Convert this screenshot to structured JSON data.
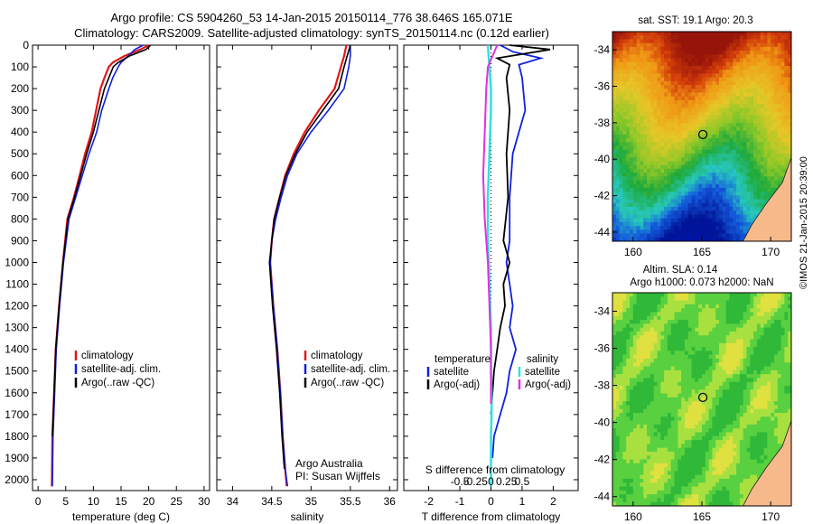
{
  "header": {
    "line1": "Argo profile: CS 5904260_53 14-Jan-2015 20150114_776 38.646S 165.071E",
    "line2": "Climatology: CARS2009. Satellite-adjusted climatology: synTS_20150114.nc (0.12d earlier)"
  },
  "watermark": "©IMOS 21-Jan-2015 20:39:00",
  "colors": {
    "climatology": "#e01818",
    "satellite": "#1020e0",
    "argo": "#000000",
    "salinity_sat": "#30e0e0",
    "salinity_argo": "#e030e0"
  },
  "chart_data": [
    {
      "id": "temperature",
      "type": "line",
      "xlabel": "temperature (deg C)",
      "ylabel": "",
      "xlim": [
        -1,
        31
      ],
      "ylim": [
        2050,
        0
      ],
      "xticks": [
        "0",
        "5",
        "10",
        "15",
        "20",
        "25",
        "30"
      ],
      "yticks": [
        "0",
        "100",
        "200",
        "300",
        "400",
        "500",
        "600",
        "700",
        "800",
        "900",
        "1000",
        "1100",
        "1200",
        "1300",
        "1400",
        "1500",
        "1600",
        "1700",
        "1800",
        "1900",
        "2000"
      ],
      "legend": [
        "climatology",
        "satellite-adj. clim.",
        "Argo(..raw -QC)"
      ],
      "series": [
        {
          "name": "climatology",
          "x": [
            20.0,
            18.5,
            15.6,
            13.5,
            12.8,
            12.0,
            11.3,
            10.5,
            9.7,
            8.5,
            7.5,
            6.5,
            5.3,
            4.5,
            3.8,
            3.2,
            2.9,
            2.6,
            2.5
          ],
          "y": [
            0,
            20,
            50,
            80,
            100,
            150,
            200,
            300,
            400,
            500,
            600,
            700,
            800,
            1000,
            1200,
            1400,
            1600,
            1800,
            2030
          ]
        },
        {
          "name": "satellite-adj. clim.",
          "x": [
            19.0,
            17.5,
            16.3,
            15.0,
            14.5,
            13.5,
            12.8,
            11.5,
            10.6,
            9.2,
            8.0,
            6.8,
            5.6,
            4.6,
            3.9,
            3.3,
            3.0,
            2.7,
            2.6
          ],
          "y": [
            0,
            20,
            50,
            80,
            100,
            150,
            200,
            300,
            400,
            500,
            600,
            700,
            800,
            1000,
            1200,
            1400,
            1600,
            1800,
            2030
          ]
        },
        {
          "name": "Argo(..raw -QC)",
          "x": [
            20.3,
            19.5,
            16.5,
            14.5,
            13.6,
            12.8,
            12.0,
            11.0,
            10.0,
            8.8,
            7.7,
            6.6,
            5.4,
            4.5,
            3.8,
            3.2,
            2.9,
            2.6
          ],
          "y": [
            0,
            20,
            50,
            80,
            100,
            150,
            200,
            300,
            400,
            500,
            600,
            700,
            800,
            1000,
            1200,
            1400,
            1600,
            1800
          ]
        }
      ]
    },
    {
      "id": "salinity",
      "type": "line",
      "xlabel": "salinity",
      "xlim": [
        33.8,
        36.1
      ],
      "ylim": [
        2050,
        0
      ],
      "xticks": [
        "34",
        "34.5",
        "35",
        "35.5",
        "36"
      ],
      "legend": [
        "climatology",
        "satellite-adj. clim.",
        "Argo(..raw -QC)"
      ],
      "annotation": [
        "Argo Australia",
        "PI: Susan Wijffels"
      ],
      "series": [
        {
          "name": "climatology",
          "x": [
            35.45,
            35.42,
            35.38,
            35.3,
            35.1,
            34.92,
            34.78,
            34.67,
            34.6,
            34.53,
            34.5,
            34.48,
            34.52,
            34.57,
            34.61,
            34.64,
            34.67,
            34.69
          ],
          "y": [
            0,
            50,
            100,
            200,
            300,
            400,
            500,
            600,
            700,
            800,
            900,
            1000,
            1200,
            1400,
            1600,
            1800,
            1950,
            2030
          ]
        },
        {
          "name": "satellite-adj. clim.",
          "x": [
            35.5,
            35.5,
            35.48,
            35.42,
            35.22,
            35.0,
            34.82,
            34.7,
            34.62,
            34.55,
            34.5,
            34.48,
            34.52,
            34.57,
            34.61,
            34.64,
            34.67,
            34.7
          ],
          "y": [
            0,
            50,
            100,
            200,
            300,
            400,
            500,
            600,
            700,
            800,
            900,
            1000,
            1200,
            1400,
            1600,
            1800,
            1950,
            2030
          ]
        },
        {
          "name": "Argo(..raw -QC)",
          "x": [
            35.5,
            35.46,
            35.42,
            35.35,
            35.15,
            34.95,
            34.8,
            34.68,
            34.6,
            34.53,
            34.5,
            34.47,
            34.51,
            34.56,
            34.6,
            34.63,
            34.66
          ],
          "y": [
            0,
            50,
            100,
            200,
            300,
            400,
            500,
            600,
            700,
            800,
            900,
            1000,
            1200,
            1400,
            1600,
            1800,
            1950
          ]
        }
      ]
    },
    {
      "id": "difference",
      "type": "line",
      "xlabel": "T difference from climatology",
      "xlabel_top": "S difference from climatology",
      "xlim": [
        -2.8,
        2.8
      ],
      "ylim": [
        2050,
        0
      ],
      "xticks": [
        "-2",
        "-1",
        "0",
        "1",
        "2"
      ],
      "xticks_top": [
        "-0.5",
        "-0.25",
        "0",
        "0.25",
        "0.5"
      ],
      "legend_t_title": "temperature",
      "legend_s_title": "salinity",
      "legend_t": [
        "satellite",
        "Argo(-adj)"
      ],
      "legend_s": [
        "satellite",
        "Argo(-adj)"
      ],
      "series": [
        {
          "name": "satellite",
          "x": [
            0.3,
            0.7,
            1.6,
            0.9,
            1.0,
            1.1,
            0.7,
            0.6,
            0.6,
            0.5,
            0.6,
            0.7,
            0.6,
            0.8,
            0.6,
            0.5,
            0.3,
            0.1,
            0.05
          ],
          "y": [
            0,
            30,
            60,
            90,
            150,
            300,
            500,
            700,
            900,
            1000,
            1100,
            1200,
            1300,
            1400,
            1500,
            1600,
            1700,
            1800,
            1900
          ]
        },
        {
          "name": "Argo(-adj)",
          "x": [
            0.6,
            1.9,
            0.2,
            0.6,
            0.5,
            0.6,
            0.5,
            0.55,
            0.4,
            0.6,
            0.4,
            0.45,
            0.3,
            0.2,
            0.1,
            0.05,
            0
          ],
          "y": [
            0,
            20,
            60,
            90,
            150,
            300,
            500,
            700,
            900,
            1000,
            1100,
            1200,
            1300,
            1400,
            1500,
            1600,
            1700
          ]
        },
        {
          "name": "satellite",
          "x": [
            -0.1,
            -0.05,
            0.0,
            0.0,
            -0.05,
            -0.1,
            -0.1,
            -0.05,
            0.0,
            0.0,
            0.02,
            0.02,
            0.0,
            0.0,
            0.0
          ],
          "y": [
            0,
            100,
            200,
            300,
            500,
            700,
            900,
            1100,
            1300,
            1500,
            1600,
            1700,
            1800,
            1900,
            2030
          ]
        },
        {
          "name": "Argo(-adj)",
          "x": [
            0.2,
            0.05,
            -0.1,
            -0.15,
            -0.2,
            -0.25,
            -0.2,
            -0.1,
            -0.05,
            0.0,
            0.0
          ],
          "y": [
            0,
            50,
            100,
            200,
            400,
            600,
            800,
            1000,
            1200,
            1400,
            1650
          ]
        }
      ]
    }
  ],
  "maps": {
    "sst": {
      "title": "sat. SST: 19.1  Argo: 20.3",
      "lat_ticks": [
        "-34",
        "-36",
        "-38",
        "-40",
        "-42",
        "-44"
      ],
      "lon_ticks": [
        "160",
        "165",
        "170"
      ]
    },
    "sla": {
      "title1": "Altim. SLA: 0.14",
      "title2": "Argo h1000: 0.073 h2000: NaN",
      "lat_ticks": [
        "-34",
        "-36",
        "-38",
        "-40",
        "-42",
        "-44"
      ],
      "lon_ticks": [
        "160",
        "165",
        "170"
      ]
    }
  }
}
